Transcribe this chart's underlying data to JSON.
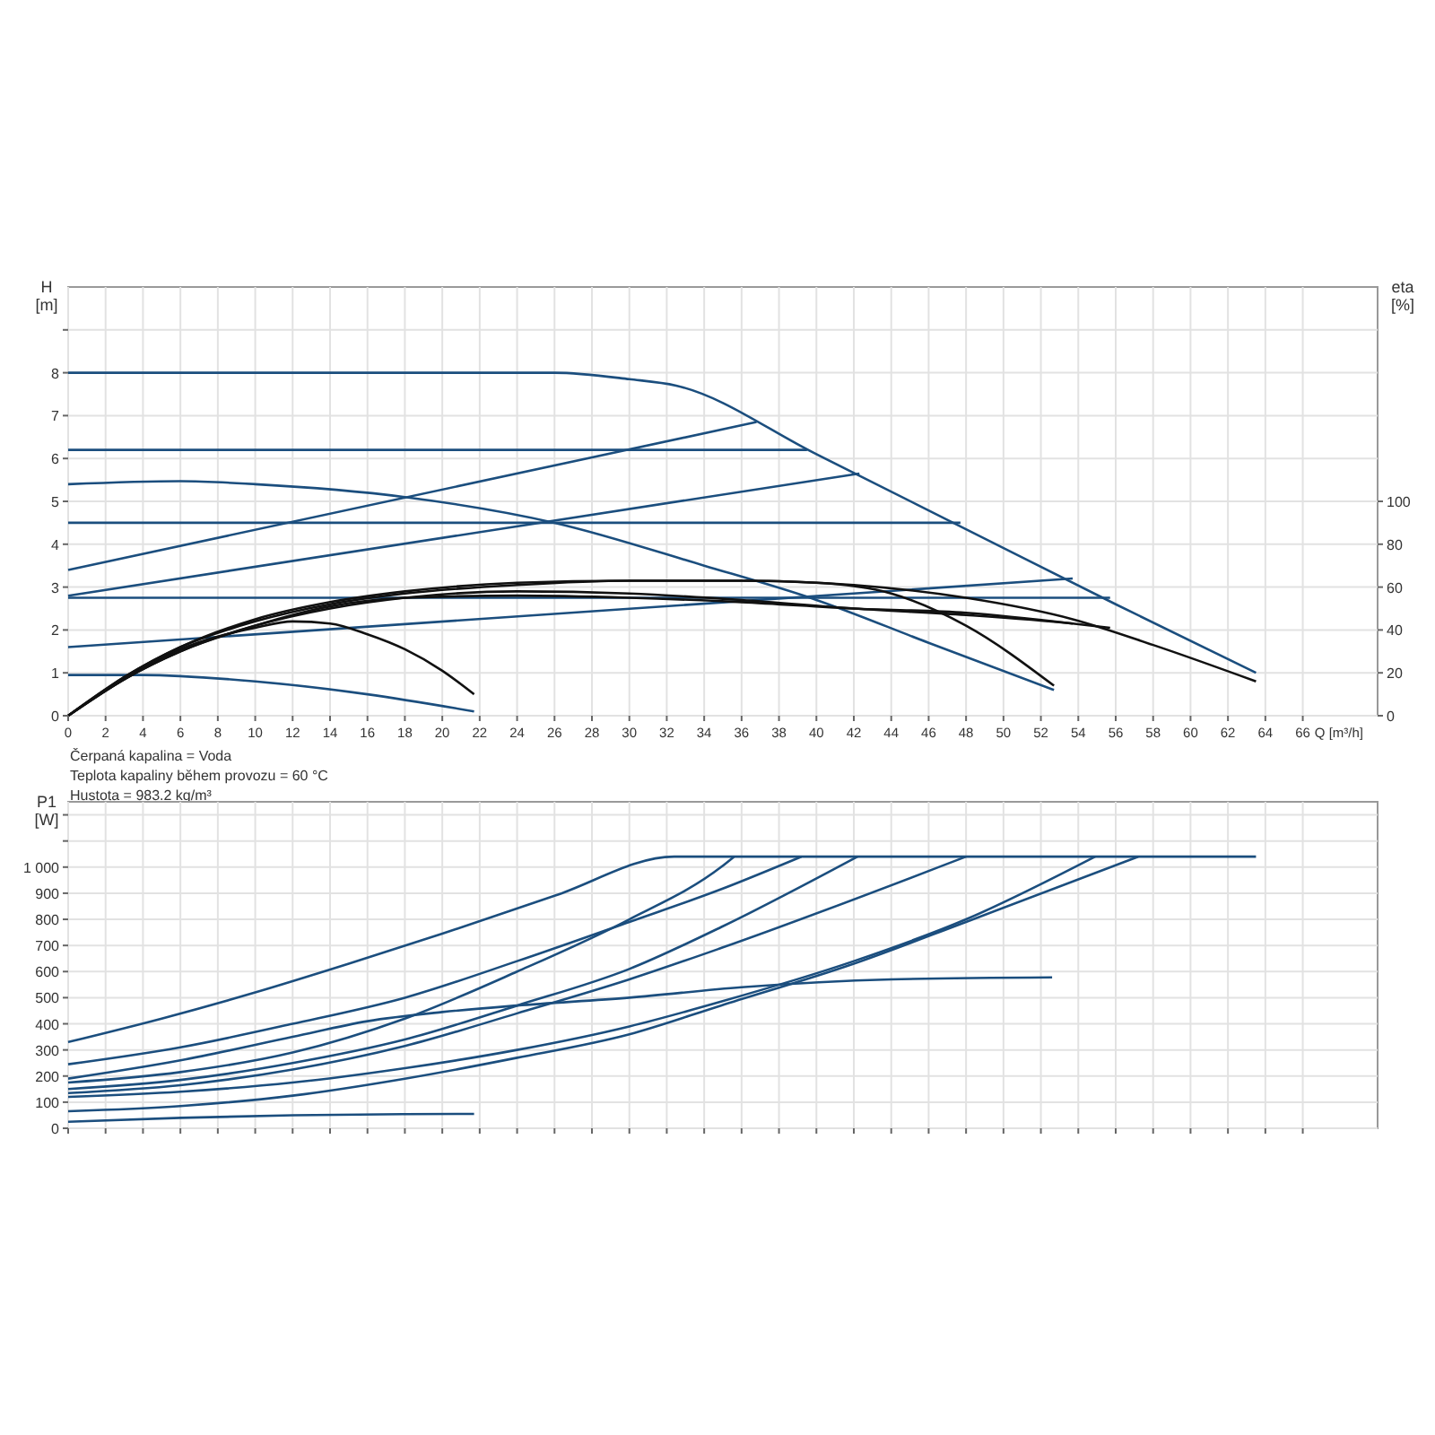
{
  "chart_data": [
    {
      "type": "line",
      "xlabel": "Q [m³/h]",
      "ylabel": "H [m]",
      "y2label": "eta [%]",
      "grid": true,
      "xlim": [
        0,
        70
      ],
      "xticks": [
        0,
        2,
        4,
        6,
        8,
        10,
        12,
        14,
        16,
        18,
        20,
        22,
        24,
        26,
        28,
        30,
        32,
        34,
        36,
        38,
        40,
        42,
        44,
        46,
        48,
        50,
        52,
        54,
        56,
        58,
        60,
        62,
        64,
        66
      ],
      "ylim": [
        0,
        10
      ],
      "yticks": [
        0,
        1,
        2,
        3,
        4,
        5,
        6,
        7,
        8,
        {
          "value": 9,
          "label": null
        }
      ],
      "y2lim": [
        0,
        200
      ],
      "y2ticks": [
        0,
        20,
        40,
        60,
        80,
        100
      ],
      "annotations": [
        "Čerpaná kapalina = Voda",
        "Teplota kapaliny během provozu = 60 °C",
        "Hustota = 983.2 kg/m³"
      ],
      "series": [
        {
          "color": "#1b4e7e",
          "x": [
            0,
            10,
            26,
            30,
            32.5,
            40,
            48,
            56,
            63.5
          ],
          "values": [
            8,
            8,
            8,
            7.85,
            7.7,
            6.1,
            4.35,
            2.6,
            1.0
          ]
        },
        {
          "color": "#1b4e7e",
          "x": [
            0,
            39.5
          ],
          "values": [
            6.2,
            6.2
          ]
        },
        {
          "color": "#1b4e7e",
          "x": [
            0,
            47.7
          ],
          "values": [
            4.5,
            4.5
          ]
        },
        {
          "color": "#1b4e7e",
          "x": [
            0,
            55.7
          ],
          "values": [
            2.75,
            2.75
          ]
        },
        {
          "color": "#1b4e7e",
          "x": [
            0,
            36.8
          ],
          "values": [
            3.4,
            6.85
          ]
        },
        {
          "color": "#1b4e7e",
          "x": [
            0,
            42.3
          ],
          "values": [
            2.8,
            5.65
          ]
        },
        {
          "color": "#1b4e7e",
          "x": [
            0,
            53.7
          ],
          "values": [
            1.6,
            3.2
          ]
        },
        {
          "color": "#1b4e7e",
          "x": [
            0,
            6,
            10,
            18,
            26,
            34,
            40,
            46,
            52.7
          ],
          "values": [
            5.4,
            5.47,
            5.4,
            5.1,
            4.5,
            3.5,
            2.7,
            1.7,
            0.6
          ]
        },
        {
          "color": "#1b4e7e",
          "x": [
            0,
            4,
            10,
            16,
            21.7
          ],
          "values": [
            0.95,
            0.95,
            0.8,
            0.5,
            0.1
          ]
        },
        {
          "color": "#111111",
          "axis": "y2",
          "x": [
            0,
            3,
            6,
            10,
            12,
            14,
            16,
            18,
            20,
            21.7
          ],
          "values": [
            0,
            17,
            31,
            41,
            44,
            43,
            38,
            31,
            21,
            10
          ]
        },
        {
          "color": "#111111",
          "axis": "y2",
          "x": [
            0,
            3,
            6,
            10,
            14,
            18,
            24,
            30,
            36,
            40,
            44,
            48,
            52.7
          ],
          "values": [
            0,
            18,
            32,
            44,
            52,
            57,
            61,
            63,
            63,
            62,
            57,
            42,
            14
          ]
        },
        {
          "color": "#111111",
          "axis": "y2",
          "x": [
            0,
            3,
            6,
            10,
            14,
            18,
            24,
            30,
            36,
            42,
            48,
            53.7,
            58,
            63.5
          ],
          "values": [
            0,
            18,
            32,
            45,
            53,
            58,
            62,
            63,
            63,
            61,
            55,
            45,
            33,
            16
          ]
        },
        {
          "color": "#111111",
          "axis": "y2",
          "x": [
            0,
            3,
            6,
            10,
            14,
            18,
            24,
            30,
            36,
            42,
            48,
            53.7,
            55.7
          ],
          "values": [
            0,
            17,
            30,
            42,
            50,
            55,
            58,
            57,
            54,
            50,
            47,
            43,
            41
          ]
        },
        {
          "color": "#111111",
          "axis": "y2",
          "x": [
            0,
            3,
            6,
            10,
            14,
            18,
            24,
            30,
            36,
            42,
            48,
            53.7
          ],
          "values": [
            0,
            17,
            30,
            42,
            51,
            55,
            56,
            55,
            53,
            50,
            48,
            43
          ]
        }
      ]
    },
    {
      "type": "line",
      "ylabel": "P1 [W]",
      "grid": true,
      "tick_labels": "y",
      "xlim": [
        0,
        70
      ],
      "xticks": [
        0,
        2,
        4,
        6,
        8,
        10,
        12,
        14,
        16,
        18,
        20,
        22,
        24,
        26,
        28,
        30,
        32,
        34,
        36,
        38,
        40,
        42,
        44,
        46,
        48,
        50,
        52,
        54,
        56,
        58,
        60,
        62,
        64,
        66
      ],
      "ylim": [
        0,
        1250
      ],
      "yticks": [
        0,
        100,
        200,
        300,
        400,
        500,
        600,
        700,
        800,
        900,
        {
          "value": 1000,
          "label": "1 000"
        },
        {
          "value": 1100,
          "label": null
        },
        {
          "value": 1200,
          "label": null
        }
      ],
      "series": [
        {
          "color": "#1b4e7e",
          "x": [
            0,
            5,
            10,
            15,
            20,
            26,
            32.4,
            63.5
          ],
          "values": [
            330,
            420,
            520,
            630,
            745,
            890,
            1040,
            1040
          ]
        },
        {
          "color": "#1b4e7e",
          "x": [
            0,
            6,
            12,
            18,
            24,
            30,
            34.9,
            39.2
          ],
          "values": [
            245,
            310,
            400,
            500,
            640,
            790,
            915,
            1040
          ]
        },
        {
          "color": "#1b4e7e",
          "x": [
            0,
            6,
            12,
            18,
            24,
            30,
            34.9,
            35.6
          ],
          "values": [
            175,
            215,
            290,
            420,
            600,
            800,
            1000,
            1040
          ]
        },
        {
          "color": "#1b4e7e",
          "x": [
            0,
            6,
            12,
            18,
            24,
            30,
            34.9,
            42.2
          ],
          "values": [
            150,
            185,
            250,
            340,
            470,
            610,
            770,
            1040
          ]
        },
        {
          "color": "#1b4e7e",
          "x": [
            0,
            6,
            12,
            18,
            24,
            30,
            34.9,
            48
          ],
          "values": [
            135,
            165,
            225,
            315,
            440,
            570,
            690,
            1040
          ]
        },
        {
          "color": "#1b4e7e",
          "x": [
            0,
            6,
            12,
            18,
            24,
            30,
            34.9,
            42,
            48,
            54.9
          ],
          "values": [
            120,
            140,
            175,
            230,
            300,
            390,
            485,
            640,
            800,
            1040
          ]
        },
        {
          "color": "#1b4e7e",
          "x": [
            0,
            6,
            12,
            18,
            24,
            30,
            34.9,
            42,
            48,
            57.2
          ],
          "values": [
            65,
            85,
            125,
            190,
            270,
            360,
            470,
            630,
            790,
            1040
          ]
        },
        {
          "color": "#1b4e7e",
          "x": [
            0,
            6,
            12,
            16,
            20,
            24,
            30,
            36,
            44,
            52.6
          ],
          "values": [
            190,
            260,
            350,
            410,
            445,
            470,
            500,
            540,
            570,
            578
          ]
        },
        {
          "color": "#1b4e7e",
          "x": [
            0,
            6,
            12,
            18,
            21.7
          ],
          "values": [
            25,
            40,
            50,
            54,
            55
          ]
        }
      ]
    }
  ]
}
